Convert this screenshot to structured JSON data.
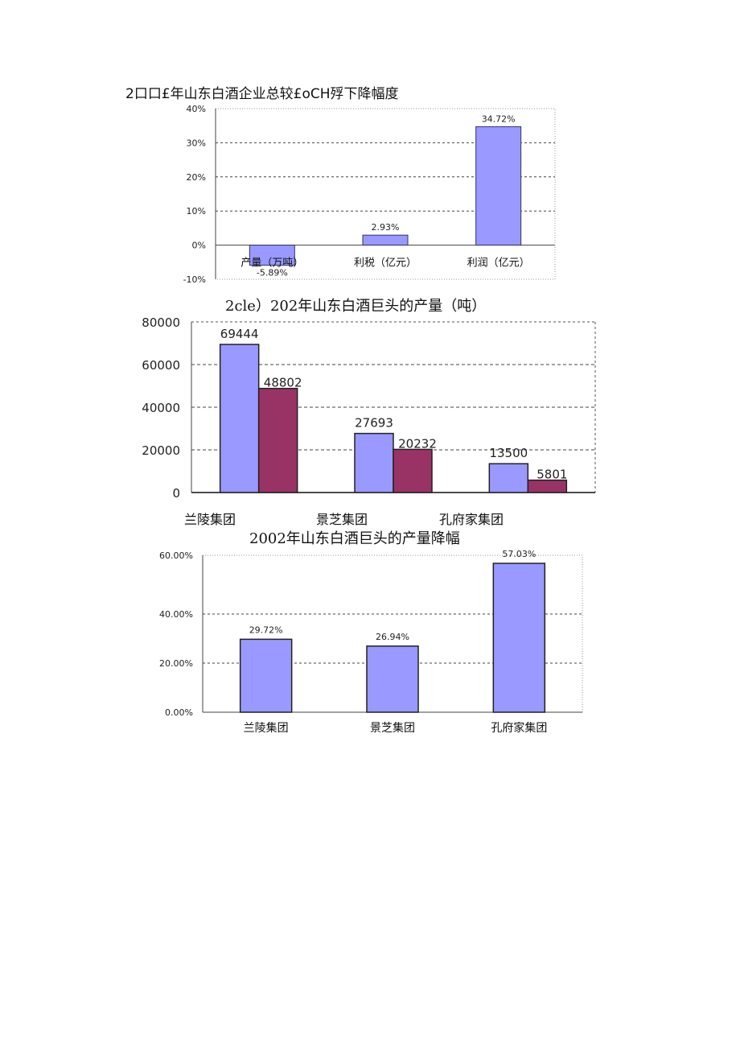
{
  "chart_data": [
    {
      "type": "bar",
      "title": "2口口£年山东白酒企业总较£oCH殍下降幅度",
      "categories": [
        "产量（万吨）",
        "利税（亿元）",
        "利润（亿元）"
      ],
      "values": [
        -5.89,
        2.93,
        34.72
      ],
      "value_labels": [
        "-5.89%",
        "2.93%",
        "34.72%"
      ],
      "yticks": [
        "40%",
        "30%",
        "20%",
        "10%",
        "0%",
        "-10%"
      ],
      "ylim": [
        -10,
        40
      ],
      "grid": true,
      "colors": {
        "bar": "#9999ff",
        "edge": "#333366"
      }
    },
    {
      "type": "bar",
      "title": "2cle）202年山东白酒巨头的产量（吨）",
      "categories": [
        "兰陵集团",
        "景芝集团",
        "孔府家集团"
      ],
      "series": [
        {
          "values": [
            69444,
            27693,
            13500
          ],
          "labels": [
            "69444",
            "27693",
            "13500"
          ]
        },
        {
          "values": [
            48802,
            20232,
            5801
          ],
          "labels": [
            "48802",
            "20232",
            "5801"
          ]
        }
      ],
      "yticks": [
        "80000",
        "60000",
        "40000",
        "20000",
        "0"
      ],
      "ylim": [
        0,
        80000
      ],
      "grid": true,
      "colors": {
        "series1": "#9999ff",
        "series2": "#993366",
        "edge": "#222222"
      }
    },
    {
      "type": "bar",
      "title": "2002年山东白酒巨头的产量降幅",
      "categories": [
        "兰陵集团",
        "景芝集团",
        "孔府家集团"
      ],
      "values": [
        29.72,
        26.94,
        57.03
      ],
      "value_labels": [
        "29.72%",
        "26.94%",
        "57.03%"
      ],
      "yticks": [
        "60.00%",
        "40.00%",
        "20.00%",
        "0.00%"
      ],
      "ylim": [
        0,
        60
      ],
      "grid": true,
      "colors": {
        "bar": "#9999ff",
        "edge": "#222222"
      }
    }
  ]
}
